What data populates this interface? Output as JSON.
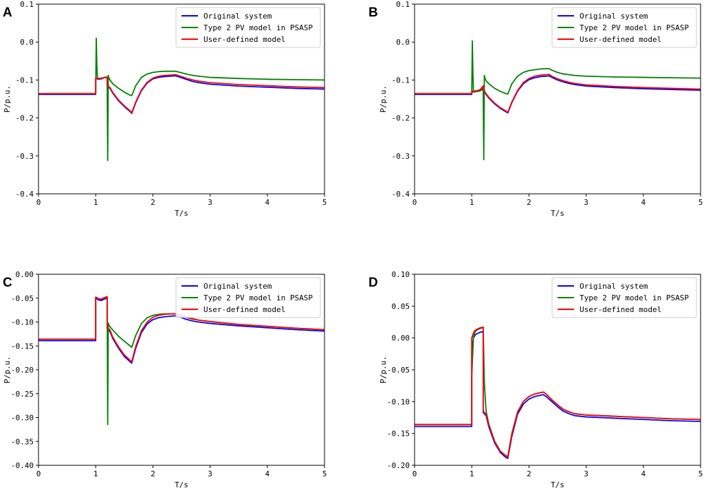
{
  "chart_data": [
    {
      "type": "line",
      "panel": "A",
      "xlabel": "T/s",
      "ylabel": "P/p.u.",
      "xlim": [
        0,
        5
      ],
      "ylim": [
        -0.4,
        0.1
      ],
      "xticks": [
        0,
        1,
        2,
        3,
        4,
        5
      ],
      "xtick_labels": [
        "0",
        "1",
        "2",
        "3",
        "4",
        "5"
      ],
      "yticks": [
        -0.4,
        -0.3,
        -0.2,
        -0.1,
        0.0,
        0.1
      ],
      "ytick_labels": [
        "-0.4",
        "-0.3",
        "-0.2",
        "-0.1",
        "0.0",
        "0.1"
      ],
      "legend": "top-right",
      "series": [
        {
          "name": "Original system",
          "color": "#0000ff",
          "x": [
            0,
            1.0,
            1.0,
            1.05,
            1.1,
            1.15,
            1.2,
            1.2,
            1.25,
            1.3,
            1.4,
            1.5,
            1.6,
            1.63,
            1.7,
            1.8,
            1.9,
            2.0,
            2.1,
            2.2,
            2.3,
            2.4,
            2.5,
            2.6,
            2.7,
            2.8,
            3.0,
            3.5,
            4.0,
            4.5,
            5.0
          ],
          "y": [
            -0.138,
            -0.138,
            -0.096,
            -0.098,
            -0.097,
            -0.094,
            -0.093,
            -0.115,
            -0.122,
            -0.135,
            -0.155,
            -0.17,
            -0.183,
            -0.188,
            -0.16,
            -0.128,
            -0.108,
            -0.097,
            -0.093,
            -0.091,
            -0.09,
            -0.089,
            -0.094,
            -0.099,
            -0.104,
            -0.107,
            -0.111,
            -0.116,
            -0.119,
            -0.122,
            -0.124
          ]
        },
        {
          "name": "Type 2 PV model in PSASP",
          "color": "#008000",
          "x": [
            0,
            1.0,
            1.01,
            1.02,
            1.03,
            1.05,
            1.1,
            1.15,
            1.2,
            1.21,
            1.22,
            1.23,
            1.25,
            1.3,
            1.4,
            1.5,
            1.6,
            1.63,
            1.7,
            1.8,
            1.9,
            2.0,
            2.1,
            2.2,
            2.3,
            2.4,
            2.5,
            2.6,
            2.7,
            2.8,
            3.0,
            3.5,
            4.0,
            4.5,
            5.0
          ],
          "y": [
            -0.136,
            -0.136,
            0.01,
            -0.06,
            -0.094,
            -0.096,
            -0.095,
            -0.094,
            -0.092,
            -0.312,
            -0.088,
            -0.094,
            -0.1,
            -0.11,
            -0.122,
            -0.132,
            -0.14,
            -0.141,
            -0.115,
            -0.093,
            -0.084,
            -0.08,
            -0.078,
            -0.077,
            -0.077,
            -0.077,
            -0.081,
            -0.085,
            -0.088,
            -0.09,
            -0.093,
            -0.096,
            -0.098,
            -0.099,
            -0.1
          ]
        },
        {
          "name": "User-defined model",
          "color": "#ff0000",
          "x": [
            0,
            1.0,
            1.0,
            1.05,
            1.1,
            1.15,
            1.2,
            1.2,
            1.25,
            1.3,
            1.4,
            1.5,
            1.6,
            1.63,
            1.7,
            1.8,
            1.9,
            2.0,
            2.1,
            2.2,
            2.3,
            2.4,
            2.5,
            2.6,
            2.7,
            2.8,
            3.0,
            3.5,
            4.0,
            4.5,
            5.0
          ],
          "y": [
            -0.136,
            -0.136,
            -0.095,
            -0.097,
            -0.096,
            -0.093,
            -0.092,
            -0.113,
            -0.12,
            -0.133,
            -0.153,
            -0.168,
            -0.181,
            -0.186,
            -0.158,
            -0.126,
            -0.106,
            -0.095,
            -0.09,
            -0.088,
            -0.087,
            -0.086,
            -0.091,
            -0.096,
            -0.1,
            -0.103,
            -0.107,
            -0.112,
            -0.115,
            -0.118,
            -0.12
          ]
        }
      ]
    },
    {
      "type": "line",
      "panel": "B",
      "xlabel": "T/s",
      "ylabel": "P/p.u.",
      "xlim": [
        0,
        5
      ],
      "ylim": [
        -0.4,
        0.1
      ],
      "xticks": [
        0,
        1,
        2,
        3,
        4,
        5
      ],
      "xtick_labels": [
        "0",
        "1",
        "2",
        "3",
        "4",
        "5"
      ],
      "yticks": [
        -0.4,
        -0.3,
        -0.2,
        -0.1,
        0.0,
        0.1
      ],
      "ytick_labels": [
        "-0.4",
        "-0.3",
        "-0.2",
        "-0.1",
        "0.0",
        "0.1"
      ],
      "legend": "top-right",
      "series": [
        {
          "name": "Original system",
          "color": "#0000ff",
          "x": [
            0,
            1.0,
            1.0,
            1.05,
            1.1,
            1.15,
            1.2,
            1.2,
            1.25,
            1.3,
            1.4,
            1.5,
            1.6,
            1.63,
            1.7,
            1.8,
            1.9,
            2.0,
            2.1,
            2.2,
            2.3,
            2.35,
            2.4,
            2.5,
            2.6,
            2.7,
            2.8,
            3.0,
            3.5,
            4.0,
            4.5,
            5.0
          ],
          "y": [
            -0.138,
            -0.138,
            -0.132,
            -0.131,
            -0.13,
            -0.128,
            -0.122,
            -0.127,
            -0.138,
            -0.148,
            -0.163,
            -0.175,
            -0.184,
            -0.187,
            -0.16,
            -0.13,
            -0.11,
            -0.099,
            -0.094,
            -0.091,
            -0.09,
            -0.089,
            -0.093,
            -0.1,
            -0.105,
            -0.109,
            -0.112,
            -0.116,
            -0.12,
            -0.123,
            -0.125,
            -0.127
          ]
        },
        {
          "name": "Type 2 PV model in PSASP",
          "color": "#008000",
          "x": [
            0,
            1.0,
            1.01,
            1.02,
            1.03,
            1.05,
            1.1,
            1.15,
            1.2,
            1.21,
            1.22,
            1.23,
            1.25,
            1.3,
            1.4,
            1.5,
            1.6,
            1.63,
            1.7,
            1.8,
            1.9,
            2.0,
            2.1,
            2.2,
            2.3,
            2.35,
            2.4,
            2.5,
            2.6,
            2.7,
            2.8,
            3.0,
            3.5,
            4.0,
            4.5,
            5.0
          ],
          "y": [
            -0.136,
            -0.136,
            0.003,
            -0.08,
            -0.132,
            -0.131,
            -0.13,
            -0.128,
            -0.125,
            -0.31,
            -0.088,
            -0.095,
            -0.102,
            -0.11,
            -0.122,
            -0.13,
            -0.136,
            -0.137,
            -0.11,
            -0.09,
            -0.08,
            -0.075,
            -0.073,
            -0.071,
            -0.07,
            -0.07,
            -0.074,
            -0.08,
            -0.084,
            -0.086,
            -0.088,
            -0.09,
            -0.092,
            -0.093,
            -0.094,
            -0.095
          ]
        },
        {
          "name": "User-defined model",
          "color": "#ff0000",
          "x": [
            0,
            1.0,
            1.0,
            1.05,
            1.1,
            1.15,
            1.2,
            1.2,
            1.25,
            1.3,
            1.4,
            1.5,
            1.6,
            1.63,
            1.7,
            1.8,
            1.9,
            2.0,
            2.1,
            2.2,
            2.3,
            2.35,
            2.4,
            2.5,
            2.6,
            2.7,
            2.8,
            3.0,
            3.5,
            4.0,
            4.5,
            5.0
          ],
          "y": [
            -0.136,
            -0.136,
            -0.13,
            -0.129,
            -0.128,
            -0.125,
            -0.115,
            -0.124,
            -0.136,
            -0.146,
            -0.161,
            -0.173,
            -0.182,
            -0.185,
            -0.158,
            -0.128,
            -0.107,
            -0.096,
            -0.09,
            -0.087,
            -0.086,
            -0.085,
            -0.09,
            -0.097,
            -0.102,
            -0.106,
            -0.109,
            -0.113,
            -0.117,
            -0.12,
            -0.122,
            -0.124
          ]
        }
      ]
    },
    {
      "type": "line",
      "panel": "C",
      "xlabel": "T/s",
      "ylabel": "P/p.u.",
      "xlim": [
        0,
        5
      ],
      "ylim": [
        -0.4,
        0.0
      ],
      "xticks": [
        0,
        1,
        2,
        3,
        4,
        5
      ],
      "xtick_labels": [
        "0",
        "1",
        "2",
        "3",
        "4",
        "5"
      ],
      "yticks": [
        -0.4,
        -0.35,
        -0.3,
        -0.25,
        -0.2,
        -0.15,
        -0.1,
        -0.05,
        0.0
      ],
      "ytick_labels": [
        "-0.40",
        "-0.35",
        "-0.30",
        "-0.25",
        "-0.20",
        "-0.15",
        "-0.10",
        "-0.05",
        "0.00"
      ],
      "legend": "top-right",
      "series": [
        {
          "name": "Original system",
          "color": "#0000ff",
          "x": [
            0,
            1.0,
            1.0,
            1.05,
            1.1,
            1.15,
            1.2,
            1.2,
            1.25,
            1.3,
            1.4,
            1.5,
            1.6,
            1.63,
            1.7,
            1.8,
            1.9,
            2.0,
            2.1,
            2.2,
            2.3,
            2.4,
            2.5,
            2.6,
            2.7,
            2.8,
            3.0,
            3.5,
            4.0,
            4.5,
            5.0
          ],
          "y": [
            -0.139,
            -0.139,
            -0.05,
            -0.054,
            -0.055,
            -0.052,
            -0.05,
            -0.113,
            -0.12,
            -0.135,
            -0.155,
            -0.172,
            -0.183,
            -0.186,
            -0.155,
            -0.122,
            -0.104,
            -0.095,
            -0.091,
            -0.089,
            -0.088,
            -0.087,
            -0.091,
            -0.095,
            -0.098,
            -0.1,
            -0.103,
            -0.108,
            -0.112,
            -0.116,
            -0.119
          ]
        },
        {
          "name": "Type 2 PV model in PSASP",
          "color": "#008000",
          "x": [
            0,
            1.0,
            1.0,
            1.05,
            1.1,
            1.15,
            1.2,
            1.21,
            1.22,
            1.23,
            1.25,
            1.3,
            1.4,
            1.5,
            1.6,
            1.63,
            1.7,
            1.8,
            1.9,
            2.0,
            2.1,
            2.2,
            2.3,
            2.4,
            2.5,
            2.6,
            2.7,
            2.8,
            3.0,
            3.5,
            4.0,
            4.5,
            5.0
          ],
          "y": [
            -0.136,
            -0.136,
            -0.048,
            -0.051,
            -0.052,
            -0.049,
            -0.047,
            -0.315,
            -0.102,
            -0.106,
            -0.11,
            -0.117,
            -0.13,
            -0.14,
            -0.15,
            -0.153,
            -0.128,
            -0.103,
            -0.091,
            -0.086,
            -0.084,
            -0.083,
            -0.083,
            -0.083,
            -0.087,
            -0.09,
            -0.093,
            -0.096,
            -0.099,
            -0.105,
            -0.109,
            -0.113,
            -0.116
          ]
        },
        {
          "name": "User-defined model",
          "color": "#ff0000",
          "x": [
            0,
            1.0,
            1.0,
            1.05,
            1.1,
            1.15,
            1.2,
            1.2,
            1.25,
            1.3,
            1.4,
            1.5,
            1.6,
            1.63,
            1.7,
            1.8,
            1.9,
            2.0,
            2.1,
            2.2,
            2.3,
            2.4,
            2.5,
            2.6,
            2.7,
            2.8,
            3.0,
            3.5,
            4.0,
            4.5,
            5.0
          ],
          "y": [
            -0.136,
            -0.136,
            -0.048,
            -0.051,
            -0.052,
            -0.049,
            -0.047,
            -0.11,
            -0.117,
            -0.132,
            -0.152,
            -0.169,
            -0.18,
            -0.183,
            -0.151,
            -0.118,
            -0.1,
            -0.09,
            -0.086,
            -0.084,
            -0.083,
            -0.083,
            -0.087,
            -0.091,
            -0.094,
            -0.096,
            -0.099,
            -0.105,
            -0.109,
            -0.113,
            -0.116
          ]
        }
      ]
    },
    {
      "type": "line",
      "panel": "D",
      "xlabel": "T/s",
      "ylabel": "P/p.u.",
      "xlim": [
        0,
        5
      ],
      "ylim": [
        -0.2,
        0.1
      ],
      "xticks": [
        0,
        1,
        2,
        3,
        4,
        5
      ],
      "xtick_labels": [
        "0",
        "1",
        "2",
        "3",
        "4",
        "5"
      ],
      "yticks": [
        -0.2,
        -0.15,
        -0.1,
        -0.05,
        0.0,
        0.05,
        0.1
      ],
      "ytick_labels": [
        "-0.20",
        "-0.15",
        "-0.10",
        "-0.05",
        "0.00",
        "0.05",
        "0.10"
      ],
      "legend": "top-right",
      "series": [
        {
          "name": "Original system",
          "color": "#0000ff",
          "x": [
            0,
            1.0,
            1.0,
            1.03,
            1.06,
            1.1,
            1.15,
            1.2,
            1.2,
            1.25,
            1.3,
            1.4,
            1.5,
            1.6,
            1.63,
            1.7,
            1.8,
            1.9,
            2.0,
            2.1,
            2.2,
            2.25,
            2.3,
            2.4,
            2.5,
            2.6,
            2.7,
            2.8,
            3.0,
            3.5,
            4.0,
            4.5,
            5.0
          ],
          "y": [
            -0.139,
            -0.139,
            -0.02,
            0.0,
            0.005,
            0.007,
            0.009,
            0.01,
            -0.117,
            -0.122,
            -0.14,
            -0.165,
            -0.18,
            -0.188,
            -0.189,
            -0.155,
            -0.12,
            -0.104,
            -0.096,
            -0.092,
            -0.09,
            -0.089,
            -0.092,
            -0.1,
            -0.108,
            -0.115,
            -0.119,
            -0.122,
            -0.124,
            -0.126,
            -0.128,
            -0.13,
            -0.131
          ]
        },
        {
          "name": "Type 2 PV model in PSASP",
          "color": "#008000",
          "x": [
            0,
            1.0,
            1.0,
            1.03,
            1.06,
            1.1,
            1.15,
            1.2,
            1.22,
            1.25,
            1.3,
            1.4,
            1.5,
            1.6,
            1.63,
            1.7,
            1.8,
            1.9,
            2.0,
            2.1,
            2.2,
            2.25,
            2.3,
            2.4,
            2.5,
            2.6,
            2.7,
            2.8,
            3.0,
            3.5,
            4.0,
            4.5,
            5.0
          ],
          "y": [
            -0.136,
            -0.136,
            -0.06,
            0.002,
            0.01,
            0.013,
            0.015,
            0.016,
            -0.07,
            -0.115,
            -0.136,
            -0.162,
            -0.178,
            -0.185,
            -0.186,
            -0.15,
            -0.116,
            -0.1,
            -0.092,
            -0.088,
            -0.086,
            -0.085,
            -0.088,
            -0.097,
            -0.105,
            -0.112,
            -0.116,
            -0.119,
            -0.121,
            -0.123,
            -0.125,
            -0.127,
            -0.128
          ]
        },
        {
          "name": "User-defined model",
          "color": "#ff0000",
          "x": [
            0,
            1.0,
            1.0,
            1.03,
            1.06,
            1.1,
            1.15,
            1.2,
            1.2,
            1.25,
            1.3,
            1.4,
            1.5,
            1.6,
            1.63,
            1.7,
            1.8,
            1.9,
            2.0,
            2.1,
            2.2,
            2.25,
            2.3,
            2.4,
            2.5,
            2.6,
            2.7,
            2.8,
            3.0,
            3.5,
            4.0,
            4.5,
            5.0
          ],
          "y": [
            -0.136,
            -0.136,
            0.0,
            0.008,
            0.012,
            0.014,
            0.016,
            0.017,
            -0.115,
            -0.12,
            -0.137,
            -0.163,
            -0.178,
            -0.186,
            -0.187,
            -0.152,
            -0.117,
            -0.1,
            -0.092,
            -0.088,
            -0.086,
            -0.085,
            -0.088,
            -0.097,
            -0.105,
            -0.112,
            -0.116,
            -0.119,
            -0.121,
            -0.123,
            -0.125,
            -0.127,
            -0.128
          ]
        }
      ]
    }
  ]
}
